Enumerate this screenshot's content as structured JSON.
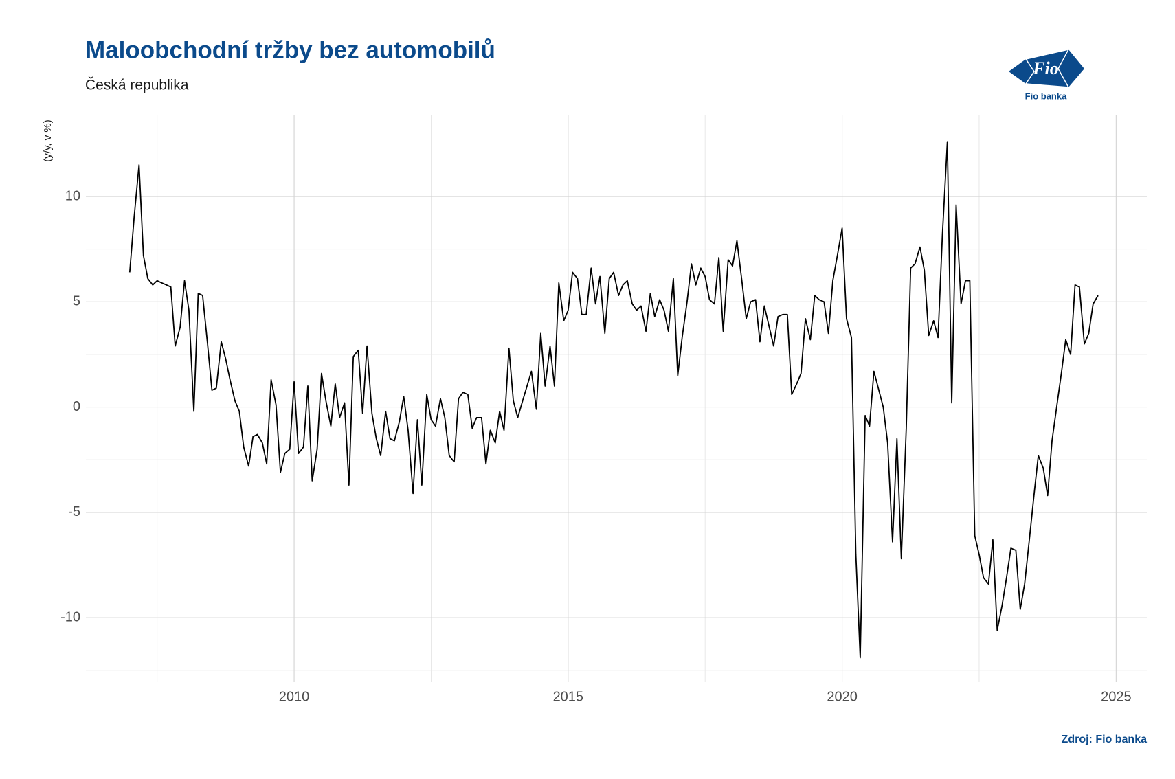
{
  "chart_data": {
    "type": "line",
    "title": "Maloobchodní tržby bez automobilů",
    "subtitle": "Česká republika",
    "y_label": "(y/y, v %)",
    "source": "Zdroj: Fio banka",
    "color": "#000000",
    "grid": true,
    "xlim": [
      2006.2,
      2025.56
    ],
    "ylim": [
      -13.06,
      13.85
    ],
    "xticks": [
      2010,
      2015,
      2020,
      2025
    ],
    "yticks": [
      -10,
      -5,
      0,
      5,
      10
    ],
    "xminorticks": [
      2007.5,
      2012.5,
      2017.5,
      2022.5
    ],
    "yminorticks": [
      -12.5,
      -7.5,
      -2.5,
      2.5,
      7.5,
      12.5
    ],
    "x": [
      2007.0,
      2007.08,
      2007.17,
      2007.25,
      2007.33,
      2007.42,
      2007.5,
      2007.58,
      2007.67,
      2007.75,
      2007.83,
      2007.92,
      2008.0,
      2008.08,
      2008.17,
      2008.25,
      2008.33,
      2008.42,
      2008.5,
      2008.58,
      2008.67,
      2008.75,
      2008.83,
      2008.92,
      2009.0,
      2009.08,
      2009.17,
      2009.25,
      2009.33,
      2009.42,
      2009.5,
      2009.58,
      2009.67,
      2009.75,
      2009.83,
      2009.92,
      2010.0,
      2010.08,
      2010.17,
      2010.25,
      2010.33,
      2010.42,
      2010.5,
      2010.58,
      2010.67,
      2010.75,
      2010.83,
      2010.92,
      2011.0,
      2011.08,
      2011.17,
      2011.25,
      2011.33,
      2011.42,
      2011.5,
      2011.58,
      2011.67,
      2011.75,
      2011.83,
      2011.92,
      2012.0,
      2012.08,
      2012.17,
      2012.25,
      2012.33,
      2012.42,
      2012.5,
      2012.58,
      2012.67,
      2012.75,
      2012.83,
      2012.92,
      2013.0,
      2013.08,
      2013.17,
      2013.25,
      2013.33,
      2013.42,
      2013.5,
      2013.58,
      2013.67,
      2013.75,
      2013.83,
      2013.92,
      2014.0,
      2014.08,
      2014.17,
      2014.25,
      2014.33,
      2014.42,
      2014.5,
      2014.58,
      2014.67,
      2014.75,
      2014.83,
      2014.92,
      2015.0,
      2015.08,
      2015.17,
      2015.25,
      2015.33,
      2015.42,
      2015.5,
      2015.58,
      2015.67,
      2015.75,
      2015.83,
      2015.92,
      2016.0,
      2016.08,
      2016.17,
      2016.25,
      2016.33,
      2016.42,
      2016.5,
      2016.58,
      2016.67,
      2016.75,
      2016.83,
      2016.92,
      2017.0,
      2017.08,
      2017.17,
      2017.25,
      2017.33,
      2017.42,
      2017.5,
      2017.58,
      2017.67,
      2017.75,
      2017.83,
      2017.92,
      2018.0,
      2018.08,
      2018.17,
      2018.25,
      2018.33,
      2018.42,
      2018.5,
      2018.58,
      2018.67,
      2018.75,
      2018.83,
      2018.92,
      2019.0,
      2019.08,
      2019.17,
      2019.25,
      2019.33,
      2019.42,
      2019.5,
      2019.58,
      2019.67,
      2019.75,
      2019.83,
      2019.92,
      2020.0,
      2020.08,
      2020.17,
      2020.25,
      2020.33,
      2020.42,
      2020.5,
      2020.58,
      2020.67,
      2020.75,
      2020.83,
      2020.92,
      2021.0,
      2021.08,
      2021.17,
      2021.25,
      2021.33,
      2021.42,
      2021.5,
      2021.58,
      2021.67,
      2021.75,
      2021.83,
      2021.92,
      2022.0,
      2022.08,
      2022.17,
      2022.25,
      2022.33,
      2022.42,
      2022.5,
      2022.58,
      2022.67,
      2022.75,
      2022.83,
      2022.92,
      2023.0,
      2023.08,
      2023.17,
      2023.25,
      2023.33,
      2023.42,
      2023.5,
      2023.58,
      2023.67,
      2023.75,
      2023.83,
      2023.92,
      2024.0,
      2024.08,
      2024.17,
      2024.25,
      2024.33,
      2024.42,
      2024.5,
      2024.58,
      2024.67
    ],
    "values": [
      6.4,
      9.0,
      11.5,
      7.2,
      6.1,
      5.8,
      6.0,
      5.9,
      5.8,
      5.7,
      2.9,
      3.8,
      6.0,
      4.6,
      -0.2,
      5.4,
      5.3,
      3.0,
      0.8,
      0.9,
      3.1,
      2.3,
      1.3,
      0.3,
      -0.2,
      -1.9,
      -2.8,
      -1.4,
      -1.3,
      -1.7,
      -2.7,
      1.3,
      0.1,
      -3.1,
      -2.2,
      -2.0,
      1.2,
      -2.2,
      -1.9,
      1.0,
      -3.5,
      -2.0,
      1.6,
      0.3,
      -0.9,
      1.1,
      -0.5,
      0.2,
      -3.7,
      2.4,
      2.7,
      -0.3,
      2.9,
      -0.3,
      -1.5,
      -2.3,
      -0.2,
      -1.5,
      -1.6,
      -0.7,
      0.5,
      -1.1,
      -4.1,
      -0.6,
      -3.7,
      0.6,
      -0.6,
      -0.9,
      0.4,
      -0.5,
      -2.3,
      -2.6,
      0.4,
      0.7,
      0.6,
      -1.0,
      -0.5,
      -0.5,
      -2.7,
      -1.1,
      -1.7,
      -0.2,
      -1.1,
      2.8,
      0.3,
      -0.5,
      0.3,
      1.0,
      1.7,
      -0.1,
      3.5,
      1.0,
      2.9,
      1.0,
      5.9,
      4.1,
      4.6,
      6.4,
      6.1,
      4.4,
      4.4,
      6.6,
      4.9,
      6.2,
      3.5,
      6.1,
      6.4,
      5.3,
      5.8,
      6.0,
      4.9,
      4.6,
      4.8,
      3.6,
      5.4,
      4.3,
      5.1,
      4.6,
      3.6,
      6.1,
      1.5,
      3.3,
      5.0,
      6.8,
      5.8,
      6.6,
      6.2,
      5.1,
      4.9,
      7.1,
      3.6,
      7.0,
      6.7,
      7.9,
      6.0,
      4.2,
      5.0,
      5.1,
      3.1,
      4.8,
      3.8,
      2.9,
      4.3,
      4.4,
      4.4,
      0.6,
      1.1,
      1.6,
      4.2,
      3.2,
      5.3,
      5.1,
      5.0,
      3.5,
      6.0,
      7.3,
      8.5,
      4.2,
      3.3,
      -7.0,
      -11.9,
      -0.4,
      -0.9,
      1.7,
      0.8,
      0.0,
      -1.7,
      -6.4,
      -1.5,
      -7.2,
      -1.0,
      6.6,
      6.8,
      7.6,
      6.5,
      3.4,
      4.1,
      3.3,
      8.2,
      12.6,
      0.2,
      9.6,
      4.9,
      6.0,
      6.0,
      -6.1,
      -7.0,
      -8.1,
      -8.4,
      -6.3,
      -10.6,
      -9.4,
      -8.1,
      -6.7,
      -6.8,
      -9.6,
      -8.4,
      -6.2,
      -4.2,
      -2.3,
      -2.9,
      -4.2,
      -1.6,
      0.1,
      1.6,
      3.2,
      2.5,
      5.8,
      5.7,
      3.0,
      3.5,
      4.9,
      5.3
    ]
  },
  "logo": {
    "mark": "Fio",
    "name": "Fio banka"
  }
}
